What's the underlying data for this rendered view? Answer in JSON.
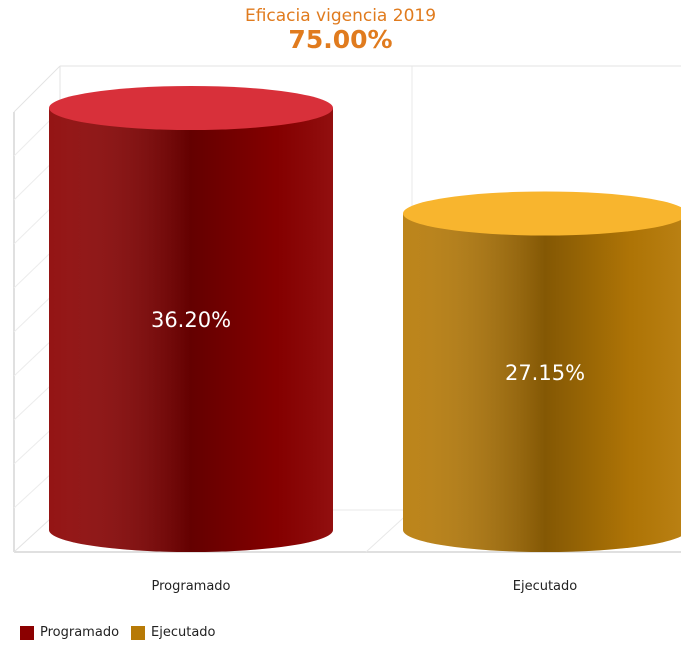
{
  "chart_data": {
    "type": "bar",
    "title": "Eficacia vigencia 2019",
    "subtitle": "75.00%",
    "categories": [
      "Programado",
      "Ejecutado"
    ],
    "values": [
      36.2,
      27.15
    ],
    "value_labels": [
      "36.20%",
      "27.15%"
    ],
    "ylim": [
      0,
      36.2
    ],
    "grid": true,
    "legend_position": "bottom-left",
    "series": [
      {
        "name": "Programado",
        "values": [
          36.2,
          null
        ],
        "color": "#8b0000",
        "top_color": "#d8303a"
      },
      {
        "name": "Ejecutado",
        "values": [
          null,
          27.15
        ],
        "color": "#b77a06",
        "top_color": "#f8b52e"
      }
    ],
    "style": "3d-cylinder"
  }
}
